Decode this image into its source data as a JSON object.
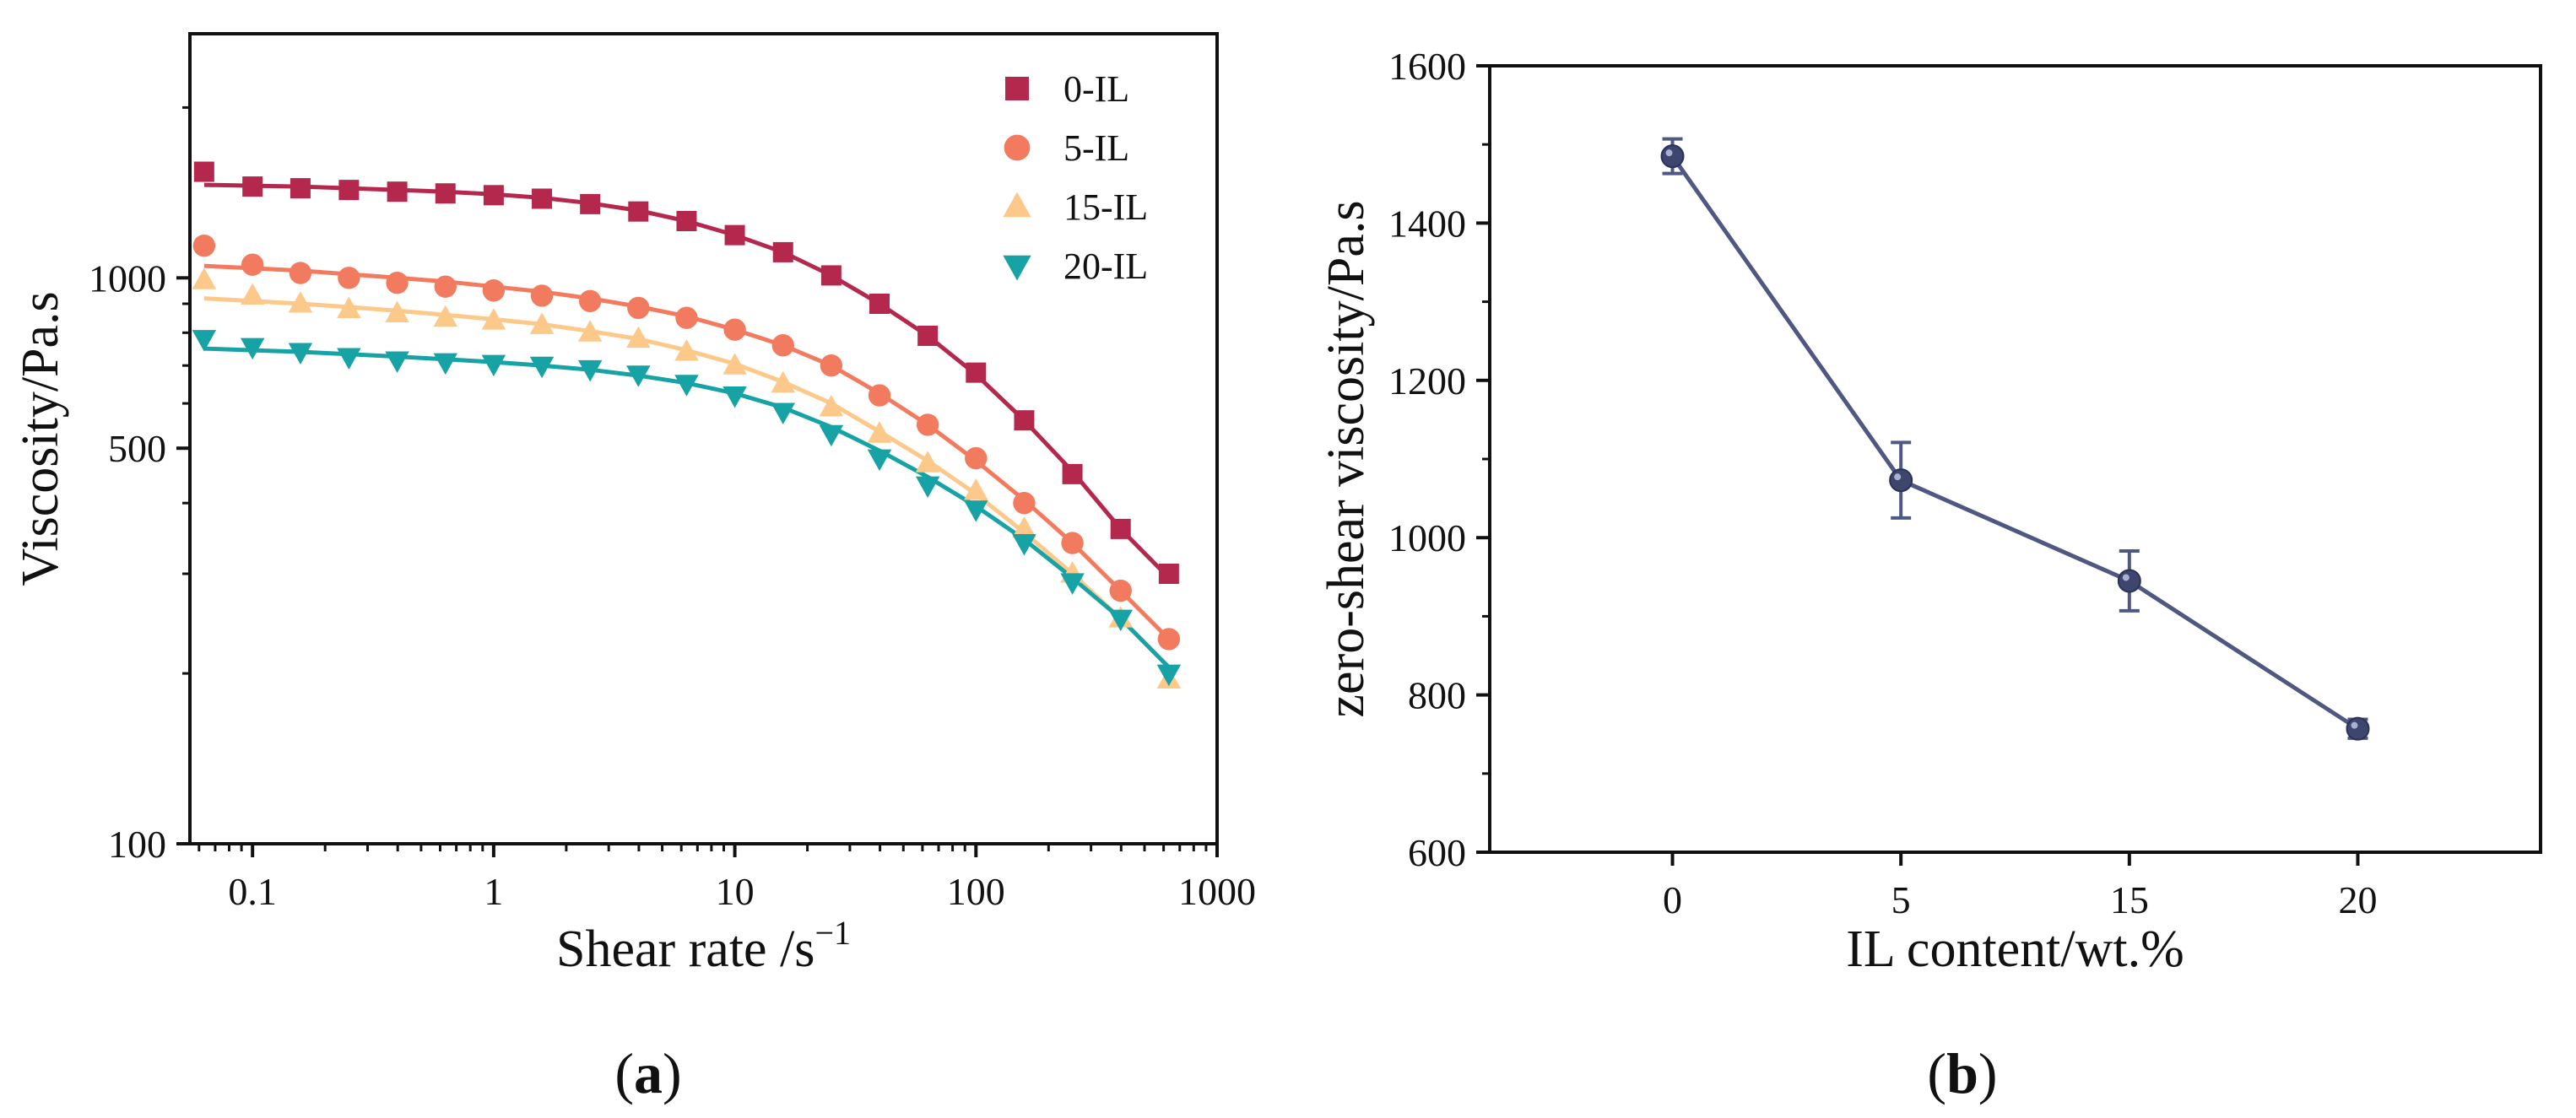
{
  "chart_data": [
    {
      "panel_label": "(a)",
      "panel_label_parts": [
        "(",
        "a",
        ")"
      ],
      "type": "scatter",
      "xscale": "log",
      "yscale": "log",
      "xlabel": "Shear rate /s",
      "xlabel_sup": "−1",
      "ylabel": "Viscosity/Pa.s",
      "xlim": [
        0.055,
        1000
      ],
      "ylim": [
        100,
        2700
      ],
      "xticks": [
        0.1,
        1,
        10,
        100,
        1000
      ],
      "xtick_labels": [
        "0.1",
        "1",
        "10",
        "100",
        "1000"
      ],
      "yticks": [
        100,
        500,
        1000
      ],
      "ytick_labels": [
        "100",
        "500",
        "1000"
      ],
      "legend_position": "top-right",
      "x": [
        0.063,
        0.1,
        0.158,
        0.251,
        0.398,
        0.631,
        1,
        1.585,
        2.512,
        3.981,
        6.31,
        10,
        15.85,
        25.12,
        39.81,
        63.1,
        100,
        158.5,
        251.2,
        398.1,
        631
      ],
      "series": [
        {
          "name": "0-IL",
          "marker": "square",
          "color": "#b5284e",
          "values": [
            1540,
            1450,
            1440,
            1430,
            1420,
            1410,
            1400,
            1380,
            1350,
            1310,
            1260,
            1190,
            1110,
            1010,
            900,
            790,
            680,
            560,
            450,
            360,
            300
          ],
          "fit": [
            1460,
            1455,
            1450,
            1440,
            1430,
            1420,
            1405,
            1385,
            1355,
            1315,
            1260,
            1190,
            1110,
            1010,
            900,
            790,
            675,
            560,
            455,
            360,
            295
          ]
        },
        {
          "name": "5-IL",
          "marker": "circle",
          "color": "#f27b5f",
          "values": [
            1140,
            1055,
            1020,
            1000,
            980,
            965,
            950,
            930,
            910,
            885,
            850,
            810,
            760,
            700,
            620,
            550,
            480,
            400,
            340,
            280,
            230
          ],
          "fit": [
            1050,
            1040,
            1030,
            1015,
            1000,
            985,
            965,
            945,
            920,
            890,
            855,
            810,
            760,
            700,
            625,
            550,
            475,
            405,
            340,
            280,
            230
          ]
        },
        {
          "name": "15-IL",
          "marker": "triangle-up",
          "color": "#fcc98a",
          "values": [
            990,
            930,
            900,
            880,
            865,
            850,
            840,
            825,
            800,
            780,
            740,
            700,
            650,
            590,
            530,
            470,
            420,
            360,
            300,
            250,
            195
          ],
          "fit": [
            920,
            910,
            900,
            888,
            875,
            860,
            845,
            828,
            805,
            780,
            745,
            705,
            655,
            600,
            535,
            475,
            415,
            355,
            300,
            250,
            205
          ]
        },
        {
          "name": "20-IL",
          "marker": "triangle-down",
          "color": "#17a3a6",
          "values": [
            780,
            755,
            740,
            725,
            715,
            710,
            705,
            700,
            690,
            675,
            650,
            620,
            580,
            530,
            480,
            430,
            390,
            340,
            290,
            250,
            200
          ],
          "fit": [
            750,
            745,
            740,
            733,
            726,
            718,
            710,
            700,
            688,
            672,
            652,
            625,
            590,
            545,
            495,
            445,
            395,
            345,
            295,
            250,
            205
          ]
        }
      ]
    },
    {
      "panel_label": "(b)",
      "panel_label_parts": [
        "(",
        "b",
        ")"
      ],
      "type": "line",
      "xlabel": "IL content/wt.%",
      "ylabel": "zero-shear viscosity/Pa.s",
      "categories": [
        "0",
        "5",
        "15",
        "20"
      ],
      "values": [
        1485,
        1073,
        945,
        757
      ],
      "errors": [
        22,
        48,
        38,
        12
      ],
      "ylim": [
        600,
        1600
      ],
      "yticks": [
        600,
        800,
        1000,
        1200,
        1400,
        1600
      ],
      "ytick_labels": [
        "600",
        "800",
        "1000",
        "1200",
        "1400",
        "1600"
      ],
      "color": "#4e5880",
      "marker_color": "#3f466e"
    }
  ]
}
